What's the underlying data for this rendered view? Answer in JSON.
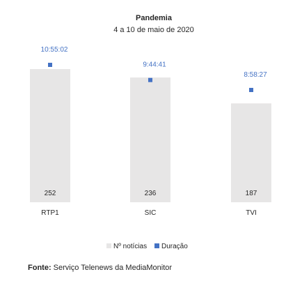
{
  "chart_data": {
    "type": "bar",
    "title": "Pandemia",
    "subtitle": "4 a 10 de maio de 2020",
    "categories": [
      "RTP1",
      "SIC",
      "TVI"
    ],
    "series": [
      {
        "name": "Nº notícias",
        "kind": "bar",
        "values": [
          252,
          236,
          187
        ],
        "color": "#e7e6e6"
      },
      {
        "name": "Duração",
        "kind": "marker",
        "values": [
          "10:55:02",
          "9:44:41",
          "8:58:27"
        ],
        "color": "#4472c4"
      }
    ],
    "legend_position": "bottom",
    "grid": false
  },
  "source": {
    "label": "Fonte:",
    "text": "Serviço Telenews da MediaMonitor"
  }
}
